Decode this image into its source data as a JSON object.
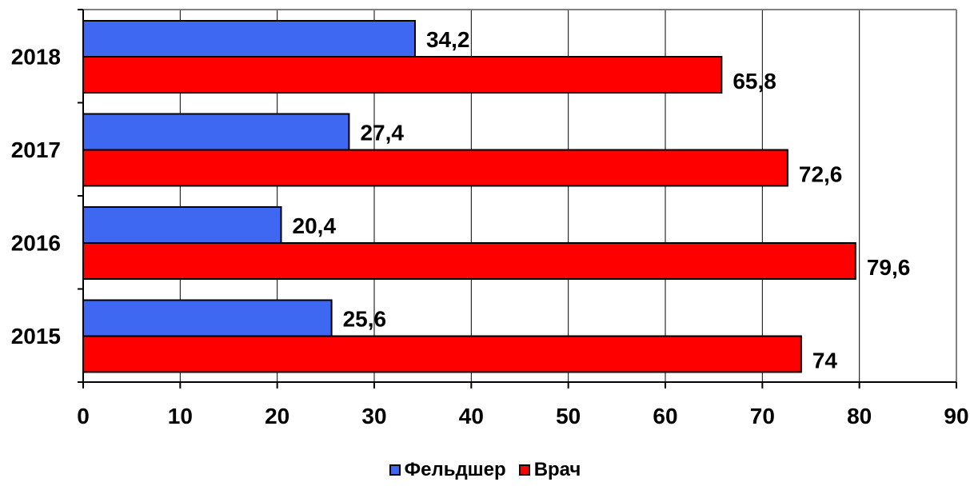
{
  "chart_data": {
    "type": "bar",
    "orientation": "horizontal",
    "categories": [
      "2018",
      "2017",
      "2016",
      "2015"
    ],
    "series": [
      {
        "name": "Фельдшер",
        "color": "#3f68f2",
        "values": [
          34.2,
          27.4,
          20.4,
          25.6
        ],
        "labels": [
          "34,2",
          "27,4",
          "20,4",
          "25,6"
        ]
      },
      {
        "name": "Врач",
        "color": "#ff0000",
        "values": [
          65.8,
          72.6,
          79.6,
          74
        ],
        "labels": [
          "65,8",
          "72,6",
          "79,6",
          "74"
        ]
      }
    ],
    "xlim": [
      0,
      90
    ],
    "xticks": [
      "0",
      "10",
      "20",
      "30",
      "40",
      "50",
      "60",
      "70",
      "80",
      "90"
    ],
    "grid": true,
    "legend_position": "bottom-center"
  }
}
